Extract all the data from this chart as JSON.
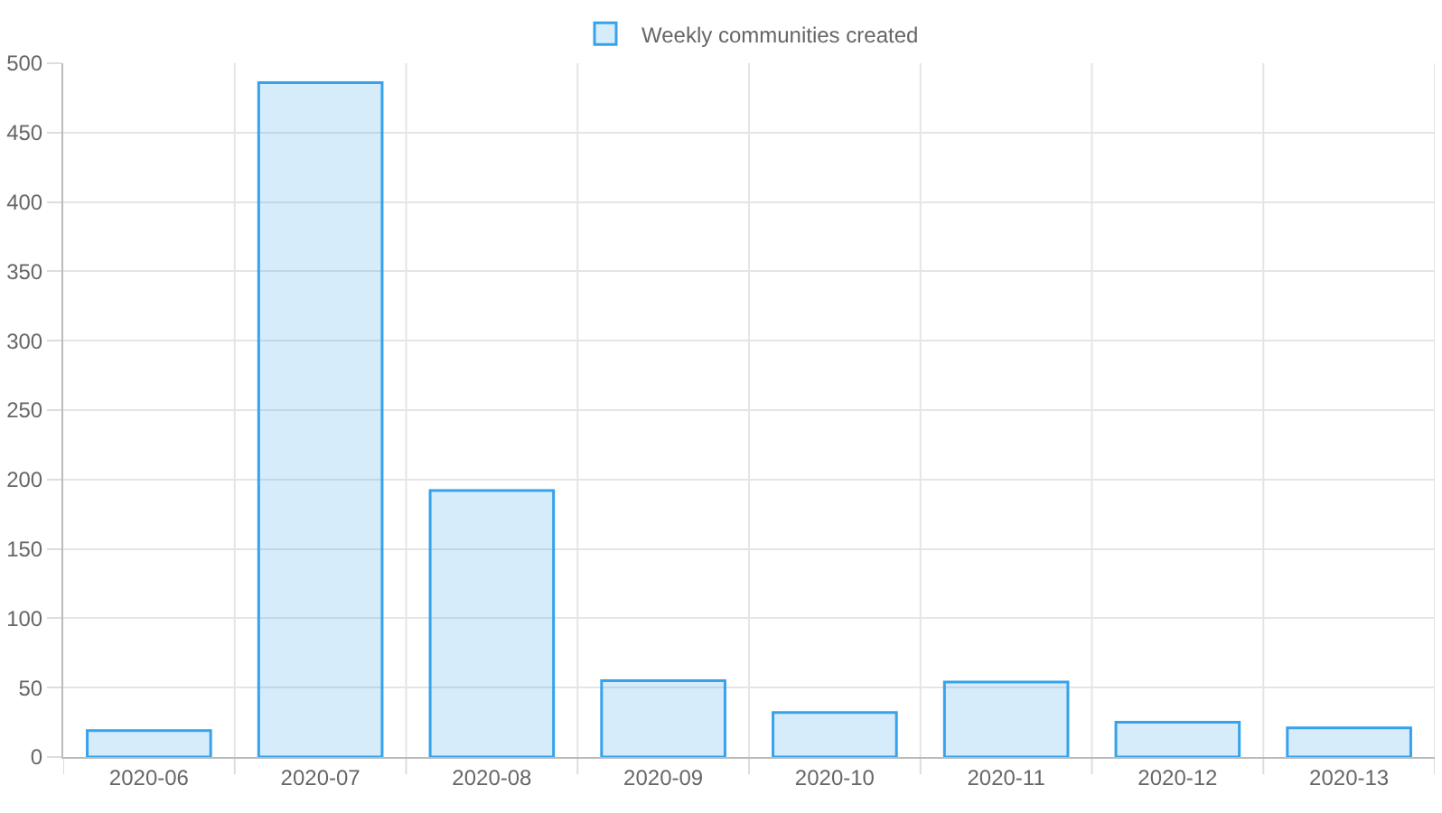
{
  "chart_data": {
    "type": "bar",
    "categories": [
      "2020-06",
      "2020-07",
      "2020-08",
      "2020-09",
      "2020-10",
      "2020-11",
      "2020-12",
      "2020-13"
    ],
    "series": [
      {
        "name": "Weekly communities created",
        "color": "#36a2eb",
        "values": [
          19,
          486,
          192,
          55,
          32,
          54,
          25,
          21
        ]
      }
    ],
    "ylim": [
      0,
      500
    ],
    "yticks": [
      0,
      50,
      100,
      150,
      200,
      250,
      300,
      350,
      400,
      450,
      500
    ],
    "grid": true,
    "legend": "top"
  }
}
